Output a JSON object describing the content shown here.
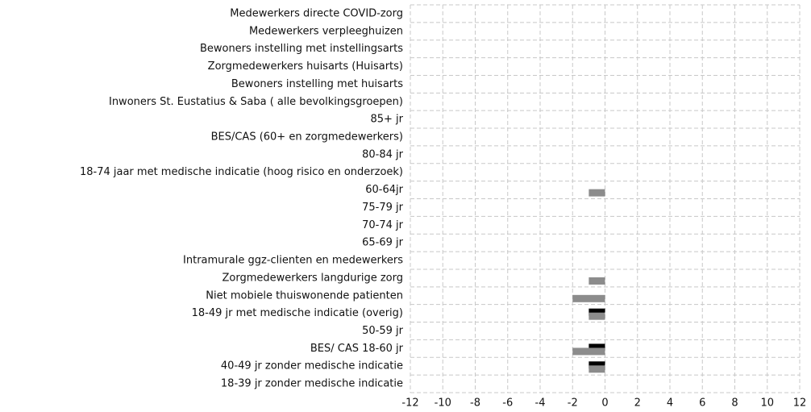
{
  "chart_data": {
    "type": "bar",
    "orientation": "horizontal",
    "categories": [
      "Medewerkers directe COVID-zorg",
      "Medewerkers verpleeghuizen",
      "Bewoners instelling met instellingsarts",
      "Zorgmedewerkers huisarts (Huisarts)",
      "Bewoners instelling met huisarts",
      "Inwoners St. Eustatius & Saba ( alle bevolkingsgroepen)",
      "85+ jr",
      "BES/CAS (60+ en zorgmedewerkers)",
      "80-84 jr",
      "18-74 jaar met medische indicatie (hoog risico en onderzoek)",
      "60-64jr",
      "75-79 jr",
      "70-74 jr",
      "65-69 jr",
      "Intramurale ggz-clienten en medewerkers",
      "Zorgmedewerkers langdurige zorg",
      "Niet mobiele thuiswonende patienten",
      "18-49 jr met medische indicatie (overig)",
      "50-59 jr",
      "BES/ CAS 18-60 jr",
      "40-49 jr zonder medische indicatie",
      "18-39 jr zonder medische indicatie"
    ],
    "series": [
      {
        "color": "#000000",
        "values": [
          0,
          0,
          0,
          0,
          0,
          0,
          0,
          0,
          0,
          0,
          0,
          0,
          0,
          0,
          0,
          0,
          0,
          -1,
          0,
          -1,
          -1,
          0
        ]
      },
      {
        "color": "#8c8c8c",
        "values": [
          0,
          0,
          0,
          0,
          0,
          0,
          0,
          0,
          0,
          0,
          -1,
          0,
          0,
          0,
          0,
          -1,
          -2,
          -1,
          0,
          -2,
          -1,
          0
        ]
      }
    ],
    "xlim": [
      -12,
      12
    ],
    "xticks": [
      -12,
      -10,
      -8,
      -6,
      -4,
      -2,
      0,
      2,
      4,
      6,
      8,
      10,
      12
    ],
    "grid": true
  }
}
